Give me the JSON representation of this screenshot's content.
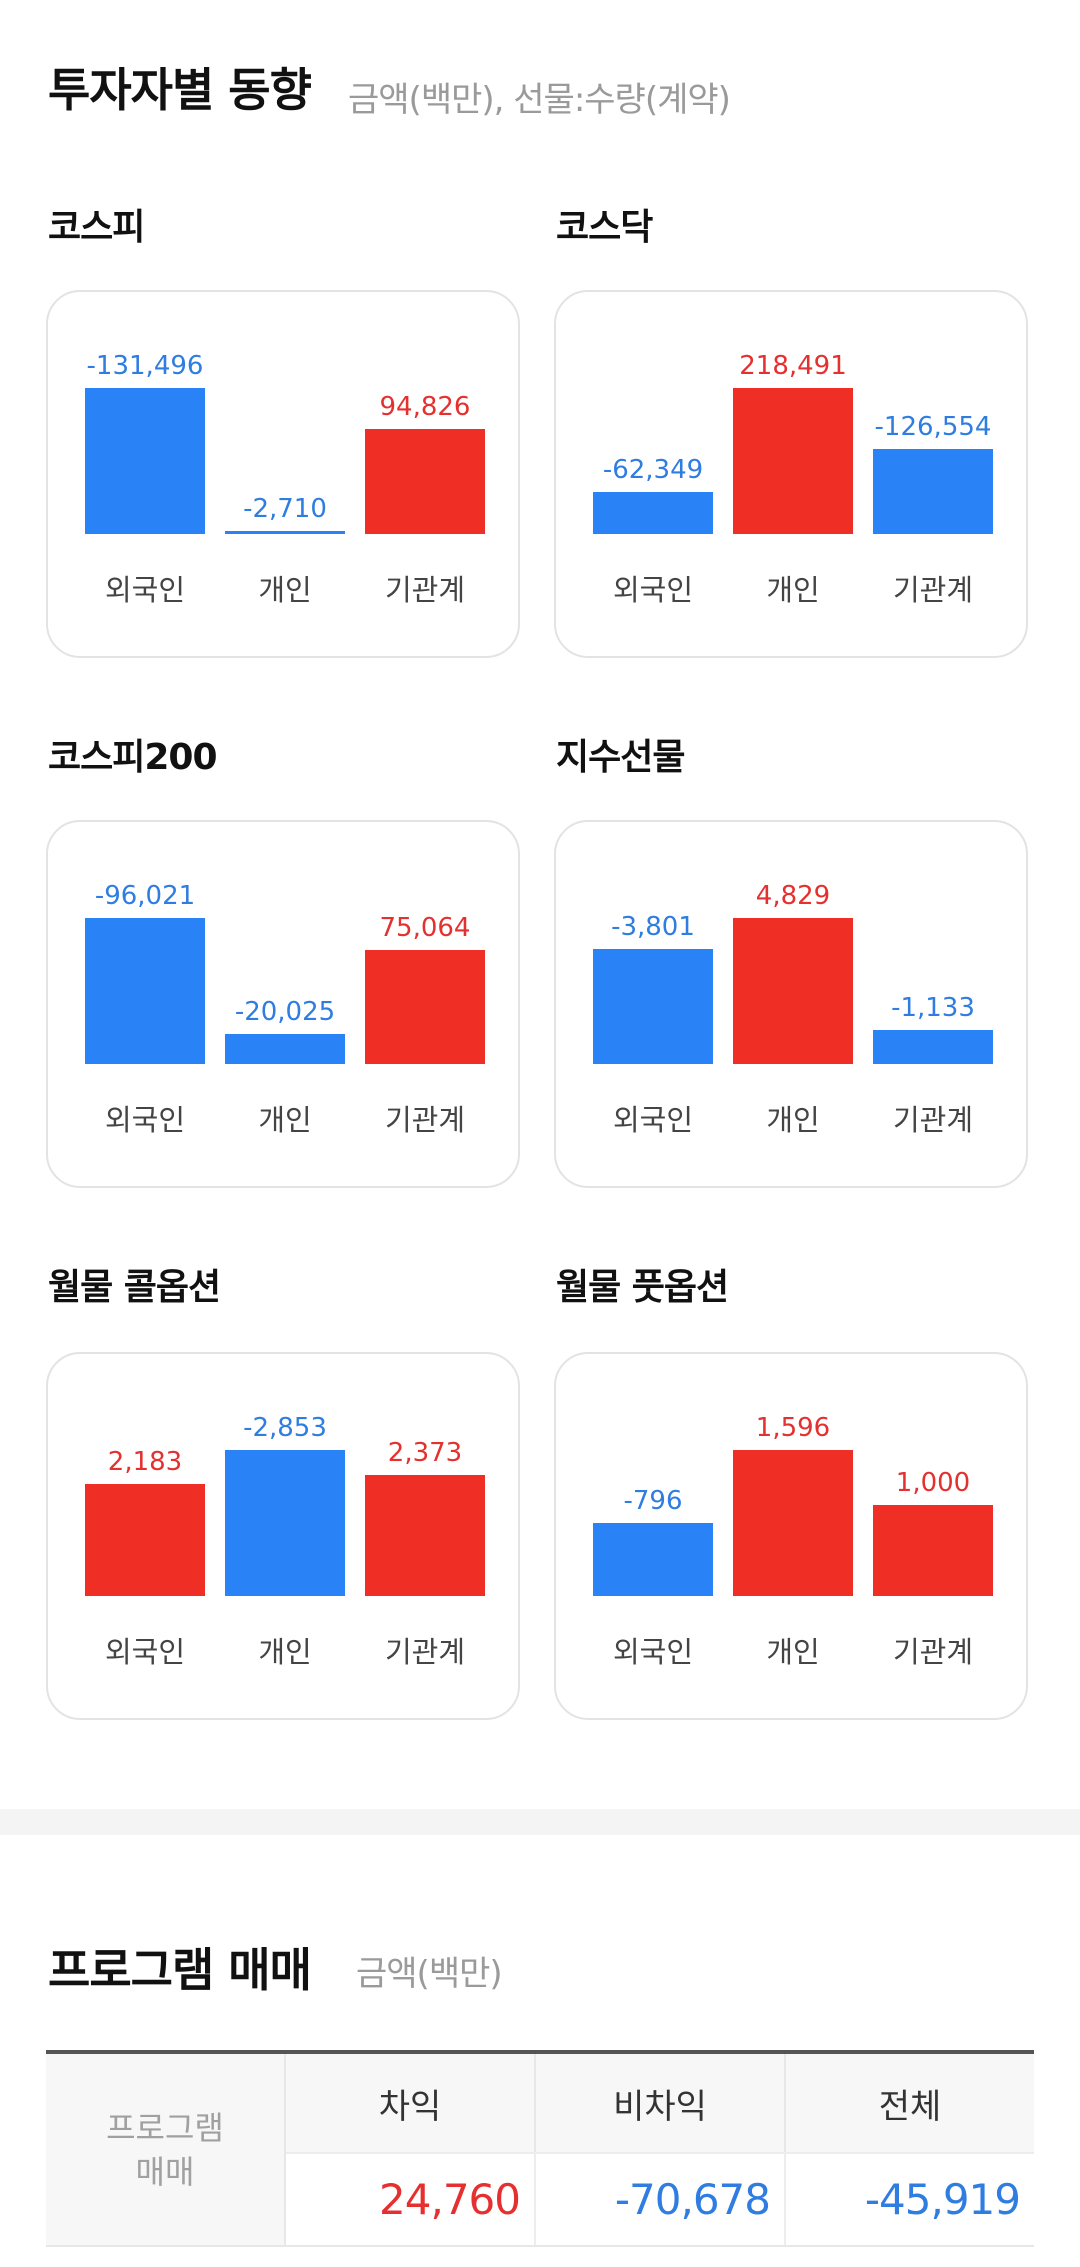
{
  "investor_trend": {
    "title": "투자자별 동향",
    "subtitle": "금액(백만), 선물:수량(계약)"
  },
  "colors": {
    "positive": "#ef2f26",
    "negative": "#2a82f7",
    "pos_text": "#e53030",
    "neg_text": "#2f7de1"
  },
  "chart_data": [
    {
      "type": "bar",
      "title": "코스피",
      "categories": [
        "외국인",
        "개인",
        "기관계"
      ],
      "values": [
        -131496,
        -2710,
        94826
      ],
      "labels": [
        "-131,496",
        "-2,710",
        "94,826"
      ]
    },
    {
      "type": "bar",
      "title": "코스닥",
      "categories": [
        "외국인",
        "개인",
        "기관계"
      ],
      "values": [
        -62349,
        218491,
        -126554
      ],
      "labels": [
        "-62,349",
        "218,491",
        "-126,554"
      ]
    },
    {
      "type": "bar",
      "title": "코스피200",
      "categories": [
        "외국인",
        "개인",
        "기관계"
      ],
      "values": [
        -96021,
        -20025,
        75064
      ],
      "labels": [
        "-96,021",
        "-20,025",
        "75,064"
      ]
    },
    {
      "type": "bar",
      "title": "지수선물",
      "categories": [
        "외국인",
        "개인",
        "기관계"
      ],
      "values": [
        -3801,
        4829,
        -1133
      ],
      "labels": [
        "-3,801",
        "4,829",
        "-1,133"
      ]
    },
    {
      "type": "bar",
      "title": "월물 콜옵션",
      "categories": [
        "외국인",
        "개인",
        "기관계"
      ],
      "values": [
        2183,
        -2853,
        2373
      ],
      "labels": [
        "2,183",
        "-2,853",
        "2,373"
      ]
    },
    {
      "type": "bar",
      "title": "월물 풋옵션",
      "categories": [
        "외국인",
        "개인",
        "기관계"
      ],
      "values": [
        -796,
        1596,
        1000
      ],
      "labels": [
        "-796",
        "1,596",
        "1,000"
      ]
    }
  ],
  "program_trading": {
    "title": "프로그램 매매",
    "subtitle": "금액(백만)",
    "row_header_line1": "프로그램",
    "row_header_line2": "매매",
    "columns": [
      "차익",
      "비차익",
      "전체"
    ],
    "values": [
      "24,760",
      "-70,678",
      "-45,919"
    ],
    "signs": [
      "pos",
      "neg",
      "neg"
    ]
  }
}
